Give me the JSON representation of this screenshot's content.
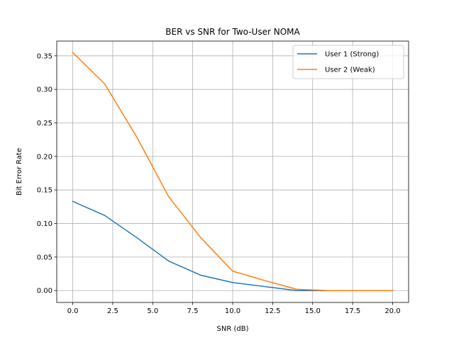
{
  "chart_data": {
    "type": "line",
    "title": "BER vs SNR for Two-User NOMA",
    "xlabel": "SNR (dB)",
    "ylabel": "Bit Error Rate",
    "x": [
      0,
      2,
      4,
      6,
      8,
      10,
      12,
      14,
      16,
      18,
      20
    ],
    "xlim": [
      -1,
      21
    ],
    "ylim": [
      -0.0177,
      0.372
    ],
    "xticks": [
      0.0,
      2.5,
      5.0,
      7.5,
      10.0,
      12.5,
      15.0,
      17.5,
      20.0
    ],
    "xtick_labels": [
      "0.0",
      "2.5",
      "5.0",
      "7.5",
      "10.0",
      "12.5",
      "15.0",
      "17.5",
      "20.0"
    ],
    "yticks": [
      0.0,
      0.05,
      0.1,
      0.15,
      0.2,
      0.25,
      0.3,
      0.35
    ],
    "ytick_labels": [
      "0.00",
      "0.05",
      "0.10",
      "0.15",
      "0.20",
      "0.25",
      "0.30",
      "0.35"
    ],
    "grid": true,
    "legend_position": "top-right",
    "series": [
      {
        "name": "User 1 (Strong)",
        "color": "#1f77b4",
        "values": [
          0.133,
          0.112,
          0.079,
          0.044,
          0.023,
          0.012,
          0.006,
          0.0,
          0.0,
          0.0,
          0.0
        ]
      },
      {
        "name": "User 2 (Weak)",
        "color": "#ff7f0e",
        "values": [
          0.355,
          0.308,
          0.229,
          0.14,
          0.079,
          0.029,
          0.015,
          0.002,
          0.0,
          0.0,
          0.0
        ]
      }
    ]
  }
}
